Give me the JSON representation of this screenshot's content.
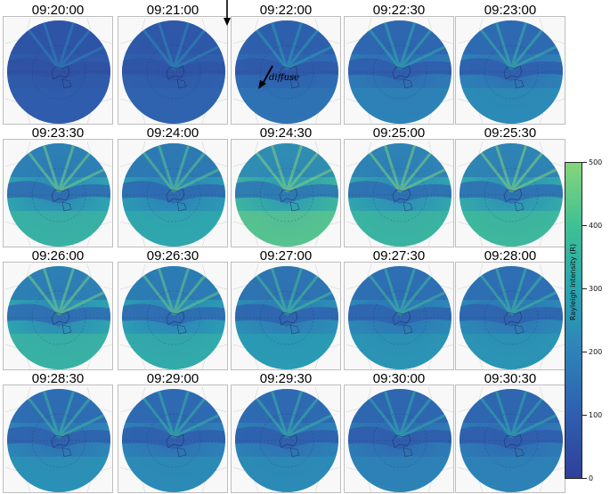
{
  "panels": [
    {
      "time": "09:20:00",
      "b": 0.15
    },
    {
      "time": "09:21:00",
      "b": 0.2
    },
    {
      "time": "09:22:00",
      "b": 0.3
    },
    {
      "time": "09:22:30",
      "b": 0.4
    },
    {
      "time": "09:23:00",
      "b": 0.45
    },
    {
      "time": "09:23:30",
      "b": 0.7
    },
    {
      "time": "09:24:00",
      "b": 0.62
    },
    {
      "time": "09:24:30",
      "b": 0.85
    },
    {
      "time": "09:25:00",
      "b": 0.72
    },
    {
      "time": "09:25:30",
      "b": 0.75
    },
    {
      "time": "09:26:00",
      "b": 0.7
    },
    {
      "time": "09:26:30",
      "b": 0.65
    },
    {
      "time": "09:27:00",
      "b": 0.55
    },
    {
      "time": "09:27:30",
      "b": 0.5
    },
    {
      "time": "09:28:00",
      "b": 0.5
    },
    {
      "time": "09:28:30",
      "b": 0.48
    },
    {
      "time": "09:29:00",
      "b": 0.45
    },
    {
      "time": "09:29:30",
      "b": 0.45
    },
    {
      "time": "09:30:00",
      "b": 0.4
    },
    {
      "time": "09:30:30",
      "b": 0.4
    }
  ],
  "annotation": {
    "label": "diffuse"
  },
  "colorbar": {
    "label": "Rayleigh intensity (R)",
    "ticks": [
      "500",
      "400",
      "300",
      "200",
      "100",
      "0"
    ],
    "colors": [
      "#2f3f9a",
      "#2e82b8",
      "#29a6b0",
      "#3fc095",
      "#86d57a"
    ]
  }
}
